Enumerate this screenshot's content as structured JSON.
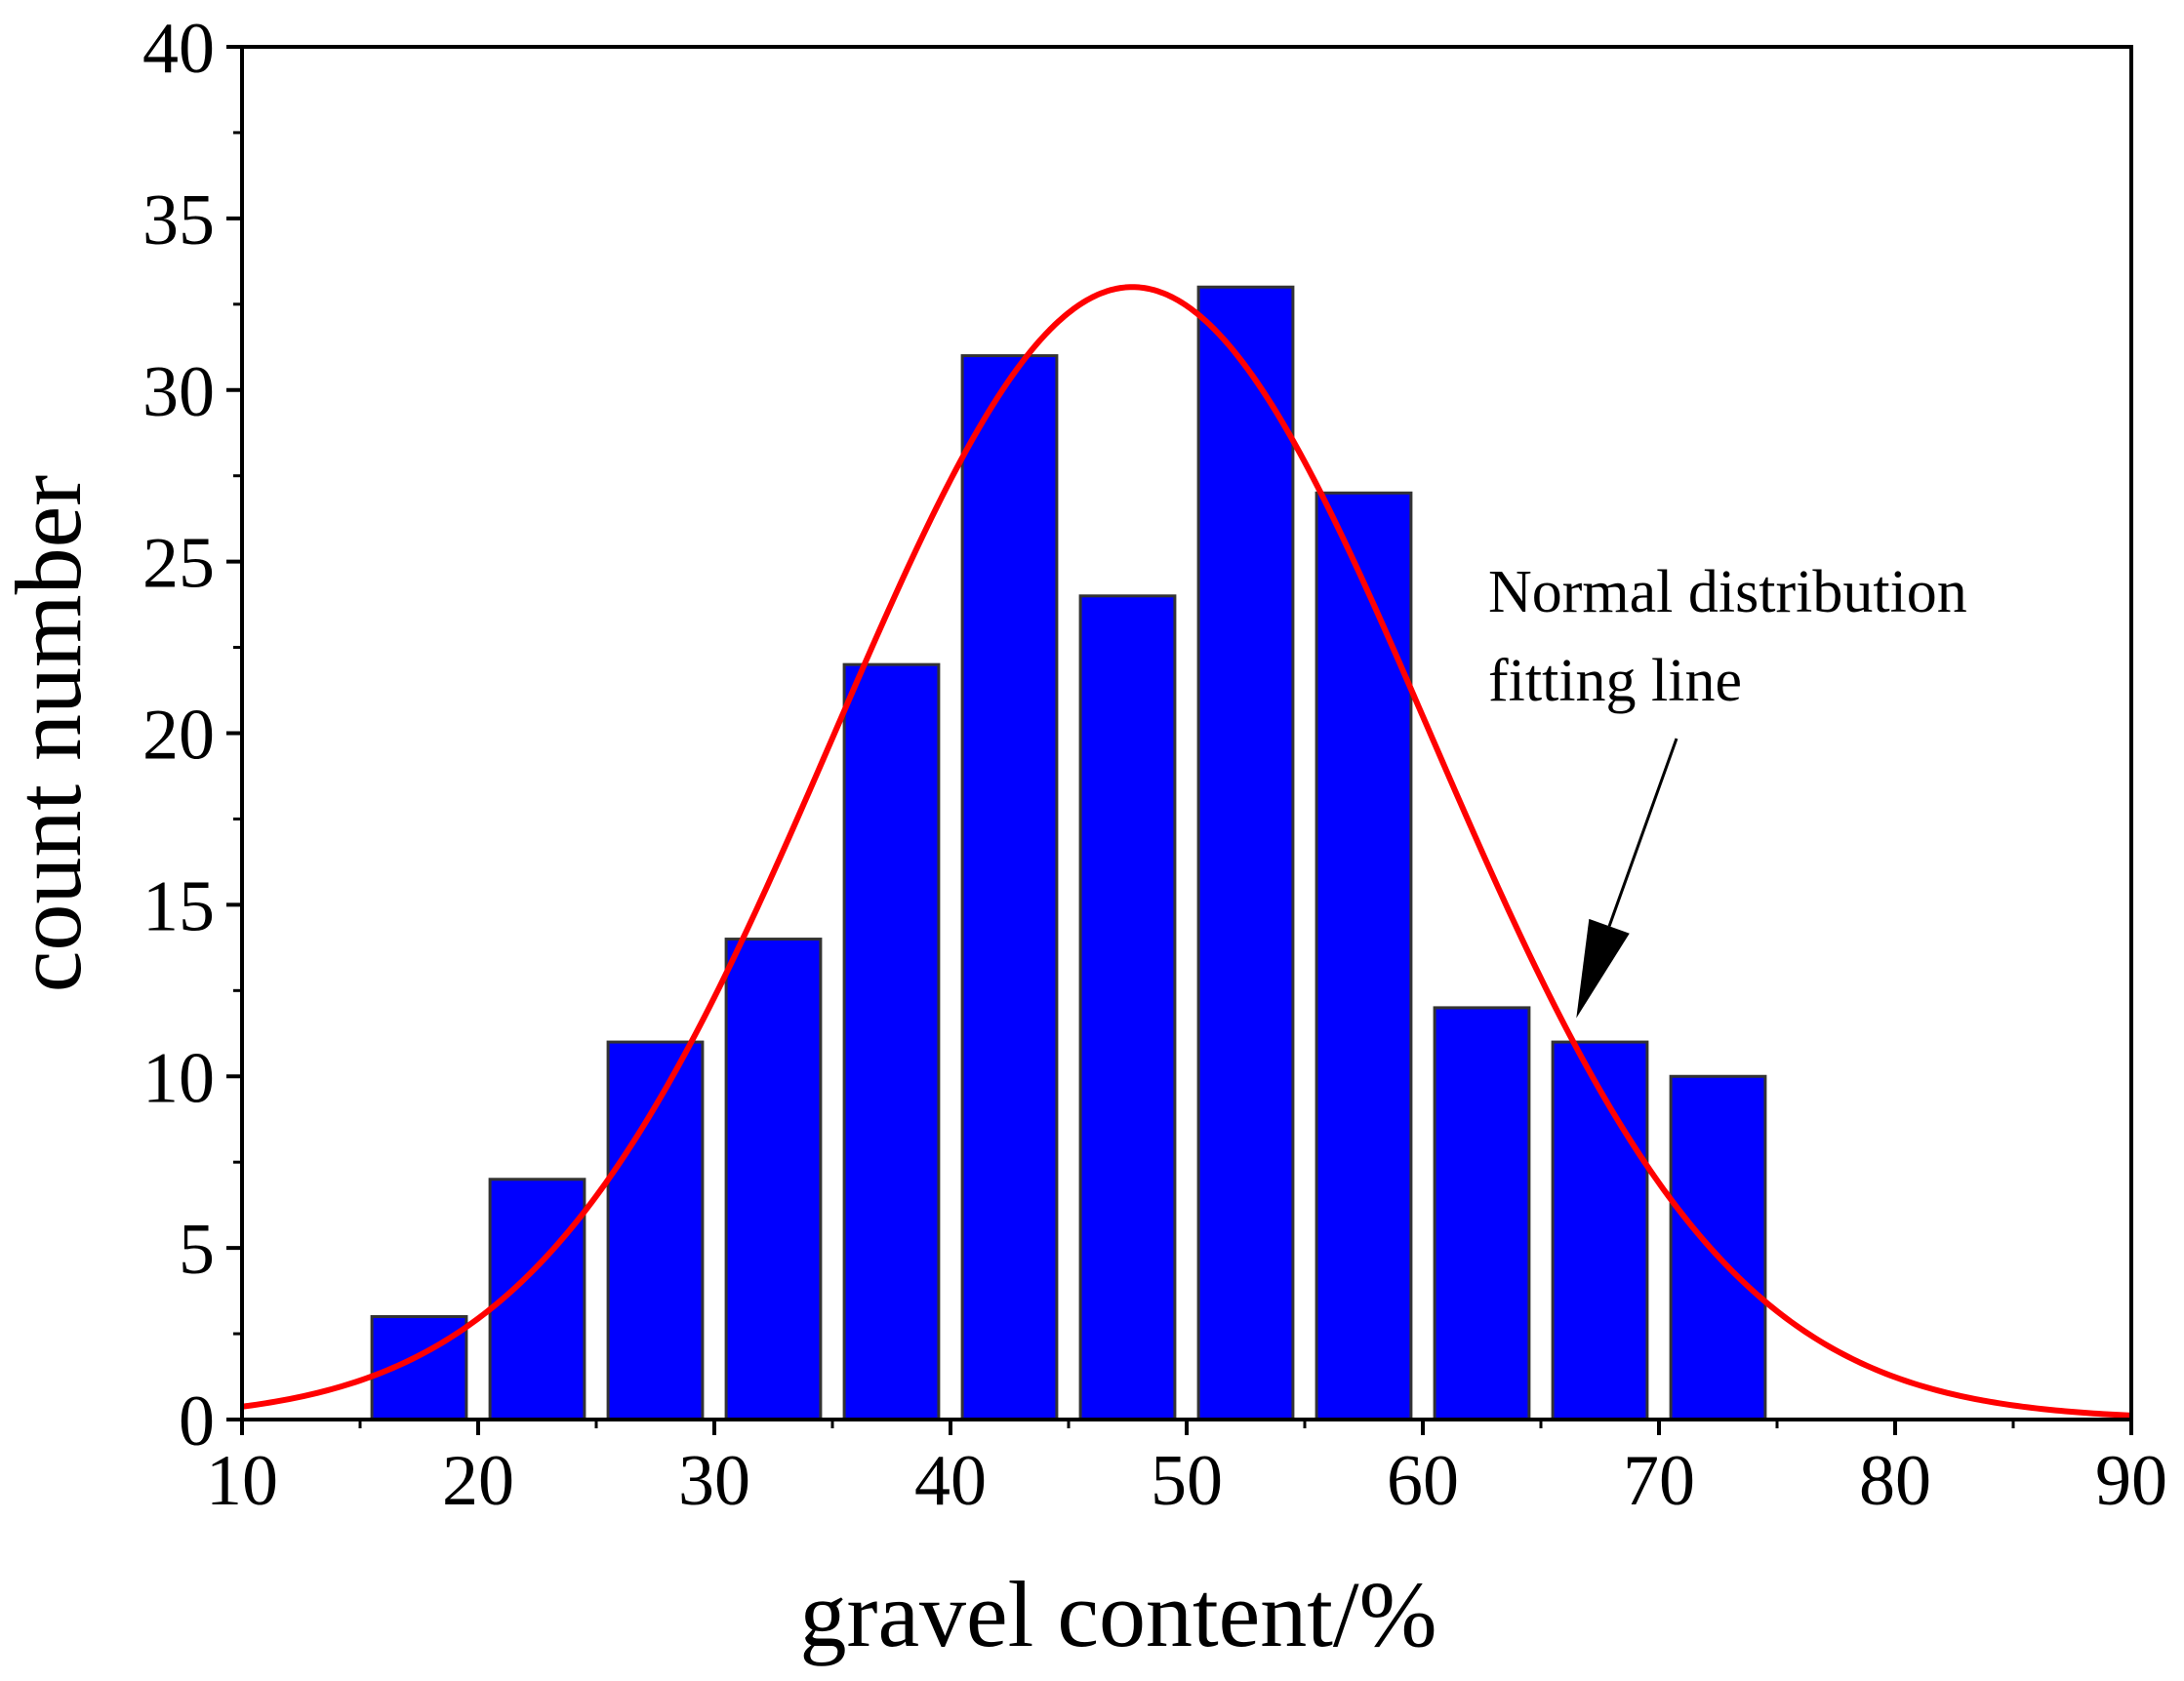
{
  "chart_data": {
    "type": "bar",
    "title": "",
    "xlabel": "gravel content/%",
    "ylabel": "count number",
    "xlim": [
      10,
      90
    ],
    "ylim": [
      0,
      40
    ],
    "x_ticks": [
      10,
      20,
      30,
      40,
      50,
      60,
      70,
      80,
      90
    ],
    "y_ticks": [
      0,
      5,
      10,
      15,
      20,
      25,
      30,
      35,
      40
    ],
    "grid": false,
    "bar_color": "#0000ff",
    "bar_edge_color": "#333333",
    "series": [
      {
        "name": "count",
        "bins": [
          {
            "from": 15.5,
            "to": 19.5,
            "value": 3
          },
          {
            "from": 20.5,
            "to": 24.5,
            "value": 7
          },
          {
            "from": 25.5,
            "to": 29.5,
            "value": 11
          },
          {
            "from": 30.5,
            "to": 34.5,
            "value": 14
          },
          {
            "from": 35.5,
            "to": 39.5,
            "value": 22
          },
          {
            "from": 40.5,
            "to": 44.5,
            "value": 31
          },
          {
            "from": 45.5,
            "to": 49.5,
            "value": 24
          },
          {
            "from": 50.5,
            "to": 54.5,
            "value": 33
          },
          {
            "from": 55.5,
            "to": 59.5,
            "value": 27
          },
          {
            "from": 60.5,
            "to": 64.5,
            "value": 12
          },
          {
            "from": 65.5,
            "to": 69.5,
            "value": 11
          },
          {
            "from": 70.5,
            "to": 74.5,
            "value": 10
          }
        ]
      }
    ],
    "fit_curve": {
      "name": "Normal distribution fitting line",
      "type": "normal",
      "amplitude": 33,
      "mean": 47.7,
      "sigma": 12.6,
      "color": "#ff0000"
    },
    "annotation": {
      "lines": [
        "Normal distribution",
        "fitting line"
      ],
      "arrow_points_to": {
        "x": 66.5,
        "y": 11.7
      }
    }
  }
}
